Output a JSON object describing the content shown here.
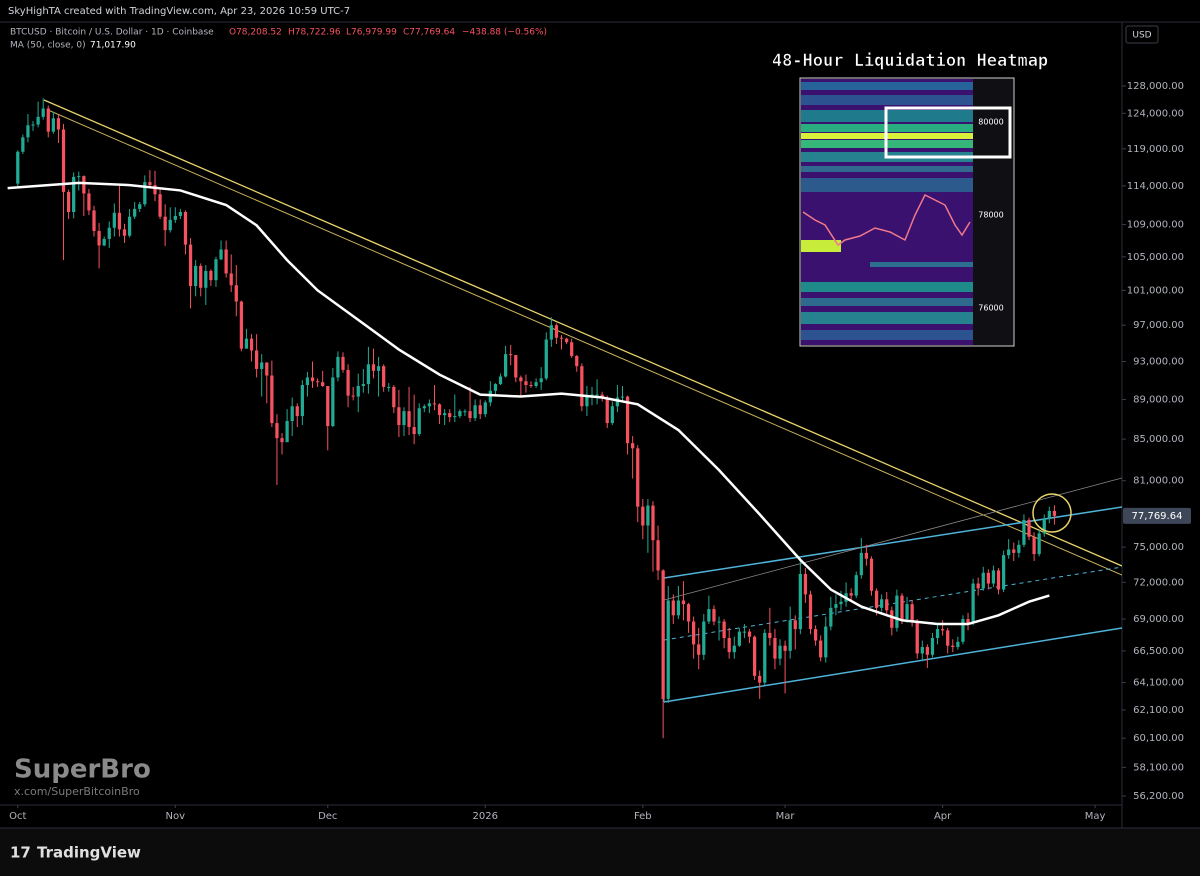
{
  "header": {
    "credit": "SkyHighTA created with TradingView.com, Apr 23, 2026 10:59 UTC-7",
    "symbol": "BTCUSD · Bitcoin / U.S. Dollar · 1D · Coinbase",
    "ohlc": [
      "O78,208.52",
      "H78,722.96",
      "L76,979.99",
      "C77,769.64",
      "−438.88 (−0.56%)"
    ],
    "ma_value": "71,017.90",
    "currency": "USD"
  },
  "inset": {
    "title": "48-Hour Liquidation Heatmap",
    "labels": [
      "80000",
      "78000",
      "76000"
    ]
  },
  "watermark": {
    "name": "SuperBro",
    "handle": "x.com/SuperBitcoinBro"
  },
  "footer": {
    "brand": "TradingView",
    "logo": "17"
  },
  "chart_data": {
    "type": "candlestick",
    "log": true,
    "up_color": "#22ab94",
    "down_color": "#f7525f",
    "ylim": [
      55620,
      137850
    ],
    "xlim": [
      -3.5,
      217.3
    ],
    "yticks": [
      {
        "value": 128000,
        "label": "128,000.00"
      },
      {
        "value": 124000,
        "label": "124,000.00"
      },
      {
        "value": 119000,
        "label": "119,000.00"
      },
      {
        "value": 114000,
        "label": "114,000.00"
      },
      {
        "value": 109000,
        "label": "109,000.00"
      },
      {
        "value": 105000,
        "label": "105,000.00"
      },
      {
        "value": 101000,
        "label": "101,000.00"
      },
      {
        "value": 97000,
        "label": "97,000.00"
      },
      {
        "value": 93000,
        "label": "93,000.00"
      },
      {
        "value": 89000,
        "label": "89,000.00"
      },
      {
        "value": 85000,
        "label": "85,000.00"
      },
      {
        "value": 81000,
        "label": "81,000.00"
      },
      {
        "value": 75000,
        "label": "75,000.00"
      },
      {
        "value": 72000,
        "label": "72,000.00"
      },
      {
        "value": 69000,
        "label": "69,000.00"
      },
      {
        "value": 66500,
        "label": "66,500.00"
      },
      {
        "value": 64100,
        "label": "64,100.00"
      },
      {
        "value": 62100,
        "label": "62,100.00"
      },
      {
        "value": 60100,
        "label": "60,100.00"
      },
      {
        "value": 58100,
        "label": "58,100.00"
      },
      {
        "value": 56200,
        "label": "56,200.00"
      }
    ],
    "xticks": [
      {
        "value": 0,
        "label": "Oct"
      },
      {
        "value": 31,
        "label": "Nov"
      },
      {
        "value": 61,
        "label": "Dec"
      },
      {
        "value": 92,
        "label": "2026"
      },
      {
        "value": 123,
        "label": "Feb"
      },
      {
        "value": 151,
        "label": "Mar"
      },
      {
        "value": 182,
        "label": "Apr"
      },
      {
        "value": 212,
        "label": "May"
      }
    ],
    "last_price_label": "77,769.64",
    "series": [
      {
        "name": "MA (50, close, 0)",
        "color": "#ffffff",
        "x": [
          -2,
          4,
          12,
          22,
          32,
          41,
          47,
          53,
          59,
          67,
          75,
          83,
          91,
          99,
          107,
          115,
          122,
          130,
          138,
          146,
          154,
          160,
          166,
          174,
          181,
          187,
          193,
          199,
          203
        ],
        "values": [
          113700,
          114000,
          114400,
          114100,
          113400,
          111500,
          108900,
          104600,
          101000,
          97600,
          94300,
          91600,
          89500,
          89300,
          89600,
          89200,
          88500,
          85900,
          82000,
          77900,
          73900,
          71400,
          70000,
          68900,
          68600,
          68600,
          69300,
          70400,
          70900
        ]
      }
    ],
    "candles": [
      [
        114300,
        118800,
        113900,
        118600
      ],
      [
        118600,
        121000,
        118300,
        120600
      ],
      [
        120600,
        123900,
        119900,
        122300
      ],
      [
        122300,
        122900,
        121500,
        122400
      ],
      [
        122400,
        125700,
        122000,
        123500
      ],
      [
        123500,
        126200,
        123100,
        124700
      ],
      [
        124700,
        125100,
        120600,
        121400
      ],
      [
        121400,
        124200,
        121100,
        123300
      ],
      [
        123300,
        123800,
        119800,
        121700
      ],
      [
        121700,
        122500,
        104600,
        113200
      ],
      [
        113200,
        113500,
        109700,
        110600
      ],
      [
        110600,
        115800,
        109800,
        115200
      ],
      [
        115200,
        115900,
        113400,
        115300
      ],
      [
        115300,
        115400,
        110100,
        113000
      ],
      [
        113000,
        113600,
        110200,
        110800
      ],
      [
        110800,
        111400,
        107500,
        108200
      ],
      [
        108200,
        109200,
        103600,
        106400
      ],
      [
        106400,
        107500,
        106300,
        107200
      ],
      [
        107200,
        109400,
        106100,
        108600
      ],
      [
        108600,
        111700,
        107500,
        110500
      ],
      [
        110500,
        114000,
        107500,
        108400
      ],
      [
        108400,
        109100,
        106700,
        107600
      ],
      [
        107600,
        111000,
        107400,
        110000
      ],
      [
        110000,
        111900,
        109700,
        111000
      ],
      [
        111000,
        111900,
        110600,
        111600
      ],
      [
        111600,
        115400,
        111300,
        114500
      ],
      [
        114500,
        116100,
        113900,
        114100
      ],
      [
        114100,
        116000,
        112000,
        112900
      ],
      [
        112900,
        113600,
        109700,
        110000
      ],
      [
        110000,
        111600,
        106300,
        108300
      ],
      [
        108300,
        111200,
        108000,
        109600
      ],
      [
        109600,
        111200,
        109200,
        110100
      ],
      [
        110100,
        111000,
        109700,
        110600
      ],
      [
        110600,
        110800,
        105300,
        106500
      ],
      [
        106500,
        107300,
        98900,
        101500
      ],
      [
        101500,
        104600,
        100300,
        103900
      ],
      [
        103900,
        104200,
        100300,
        101300
      ],
      [
        101300,
        104000,
        99300,
        103300
      ],
      [
        103300,
        103500,
        101500,
        102200
      ],
      [
        102200,
        105000,
        101400,
        104700
      ],
      [
        104700,
        107000,
        104600,
        105900
      ],
      [
        105900,
        107000,
        102500,
        103000
      ],
      [
        103000,
        105300,
        100800,
        101600
      ],
      [
        101600,
        104000,
        98000,
        99700
      ],
      [
        99700,
        99800,
        94100,
        94400
      ],
      [
        94400,
        96600,
        94400,
        95500
      ],
      [
        95500,
        96000,
        93000,
        94200
      ],
      [
        94200,
        96000,
        91300,
        92200
      ],
      [
        92200,
        93800,
        89300,
        92900
      ],
      [
        92900,
        92900,
        88600,
        91500
      ],
      [
        91500,
        93100,
        86200,
        86600
      ],
      [
        86600,
        87500,
        80600,
        85100
      ],
      [
        85100,
        85600,
        83500,
        84700
      ],
      [
        84700,
        88000,
        84700,
        86800
      ],
      [
        86800,
        89200,
        85300,
        88300
      ],
      [
        88300,
        88600,
        86200,
        87300
      ],
      [
        87300,
        91000,
        86400,
        90500
      ],
      [
        90500,
        91900,
        89300,
        91300
      ],
      [
        91300,
        93000,
        90200,
        90900
      ],
      [
        90900,
        91200,
        90300,
        90800
      ],
      [
        90800,
        92000,
        90300,
        90400
      ],
      [
        90400,
        90400,
        83900,
        86300
      ],
      [
        86300,
        92300,
        86200,
        91300
      ],
      [
        91300,
        94100,
        90900,
        93500
      ],
      [
        93500,
        94000,
        91800,
        92100
      ],
      [
        92100,
        92700,
        88200,
        89400
      ],
      [
        89400,
        90300,
        88900,
        89300
      ],
      [
        89300,
        91700,
        87700,
        90400
      ],
      [
        90400,
        92200,
        89700,
        90600
      ],
      [
        90600,
        94600,
        89600,
        92700
      ],
      [
        92700,
        94400,
        91200,
        92000
      ],
      [
        92000,
        93500,
        89300,
        92500
      ],
      [
        92500,
        92700,
        89800,
        90300
      ],
      [
        90300,
        90700,
        89800,
        90300
      ],
      [
        90300,
        90500,
        87600,
        88200
      ],
      [
        88200,
        90000,
        85200,
        86400
      ],
      [
        86400,
        88200,
        85300,
        87800
      ],
      [
        87800,
        90300,
        85400,
        86200
      ],
      [
        86200,
        89500,
        84500,
        85500
      ],
      [
        85500,
        88600,
        85300,
        88100
      ],
      [
        88100,
        88500,
        87700,
        88300
      ],
      [
        88300,
        89000,
        87600,
        88600
      ],
      [
        88600,
        90500,
        87900,
        88500
      ],
      [
        88500,
        88600,
        86500,
        87400
      ],
      [
        87400,
        88000,
        86400,
        87600
      ],
      [
        87600,
        88000,
        86700,
        87200
      ],
      [
        87200,
        89500,
        86700,
        87300
      ],
      [
        87300,
        88000,
        87100,
        87800
      ],
      [
        87800,
        88000,
        87300,
        87800
      ],
      [
        87800,
        90300,
        86700,
        87100
      ],
      [
        87100,
        89000,
        86800,
        88400
      ],
      [
        88400,
        89000,
        87000,
        87500
      ],
      [
        87500,
        88900,
        87200,
        88700
      ],
      [
        88700,
        90900,
        88300,
        89900
      ],
      [
        89900,
        90700,
        89300,
        90600
      ],
      [
        90600,
        91700,
        90500,
        91400
      ],
      [
        91400,
        94700,
        91300,
        93800
      ],
      [
        93800,
        94800,
        92600,
        93700
      ],
      [
        93700,
        93700,
        90800,
        91300
      ],
      [
        91300,
        91500,
        89400,
        90900
      ],
      [
        90900,
        91600,
        89700,
        90500
      ],
      [
        90500,
        90900,
        90200,
        90400
      ],
      [
        90400,
        91200,
        90200,
        90800
      ],
      [
        90800,
        92400,
        90000,
        91200
      ],
      [
        91200,
        96200,
        91000,
        95400
      ],
      [
        95400,
        97900,
        94600,
        97000
      ],
      [
        97000,
        97200,
        94900,
        95600
      ],
      [
        95600,
        95900,
        94300,
        95500
      ],
      [
        95500,
        95600,
        94900,
        95100
      ],
      [
        95100,
        95500,
        93400,
        93600
      ],
      [
        93600,
        93700,
        91900,
        92500
      ],
      [
        92500,
        92800,
        87800,
        88300
      ],
      [
        88300,
        90400,
        87300,
        89400
      ],
      [
        89400,
        90300,
        88400,
        89500
      ],
      [
        89500,
        91100,
        88500,
        89500
      ],
      [
        89500,
        89800,
        88800,
        89200
      ],
      [
        89200,
        89400,
        86100,
        86600
      ],
      [
        86600,
        88800,
        86400,
        88300
      ],
      [
        88300,
        90500,
        87700,
        89200
      ],
      [
        89200,
        90400,
        88700,
        89300
      ],
      [
        89300,
        89400,
        83500,
        84600
      ],
      [
        84600,
        85300,
        81200,
        84100
      ],
      [
        84100,
        84400,
        77200,
        78600
      ],
      [
        78600,
        79300,
        75700,
        76900
      ],
      [
        76900,
        79300,
        74500,
        78700
      ],
      [
        78700,
        79100,
        72900,
        75600
      ],
      [
        75600,
        76900,
        72200,
        73000
      ],
      [
        73000,
        73100,
        60100,
        62900
      ],
      [
        62900,
        71700,
        62600,
        70500
      ],
      [
        70500,
        71000,
        68600,
        69300
      ],
      [
        69300,
        71700,
        69000,
        70500
      ],
      [
        70500,
        72100,
        68900,
        70200
      ],
      [
        70200,
        70300,
        67900,
        68800
      ],
      [
        68800,
        69200,
        65900,
        67000
      ],
      [
        67000,
        68300,
        65100,
        66200
      ],
      [
        66200,
        69400,
        65800,
        68800
      ],
      [
        68800,
        70900,
        68600,
        69800
      ],
      [
        69800,
        70100,
        68500,
        68800
      ],
      [
        68800,
        69200,
        67300,
        68800
      ],
      [
        68800,
        69000,
        66700,
        67500
      ],
      [
        67500,
        68300,
        65900,
        66400
      ],
      [
        66400,
        67600,
        65900,
        66900
      ],
      [
        66900,
        68300,
        66800,
        68000
      ],
      [
        68000,
        68600,
        67500,
        68000
      ],
      [
        68000,
        68200,
        67100,
        67600
      ],
      [
        67600,
        67700,
        64300,
        64600
      ],
      [
        64600,
        65000,
        62900,
        64100
      ],
      [
        64100,
        68200,
        63900,
        67900
      ],
      [
        67900,
        69900,
        66900,
        67500
      ],
      [
        67500,
        68200,
        65100,
        65900
      ],
      [
        65900,
        67400,
        65400,
        66900
      ],
      [
        66900,
        67300,
        63300,
        66500
      ],
      [
        66500,
        70000,
        65900,
        68900
      ],
      [
        68900,
        69300,
        66600,
        68200
      ],
      [
        68200,
        74000,
        67800,
        72700
      ],
      [
        72700,
        73200,
        70300,
        71000
      ],
      [
        71000,
        71300,
        67800,
        68200
      ],
      [
        68200,
        68500,
        66900,
        67300
      ],
      [
        67300,
        67700,
        65700,
        66000
      ],
      [
        66000,
        69200,
        65600,
        68400
      ],
      [
        68400,
        70800,
        68100,
        69900
      ],
      [
        69900,
        71000,
        69300,
        70200
      ],
      [
        70200,
        71300,
        69700,
        70400
      ],
      [
        70400,
        72000,
        70000,
        71100
      ],
      [
        71100,
        71500,
        70400,
        70900
      ],
      [
        70900,
        72900,
        70700,
        72600
      ],
      [
        72600,
        75800,
        72300,
        74500
      ],
      [
        74500,
        75200,
        73400,
        74000
      ],
      [
        74000,
        74200,
        70900,
        71300
      ],
      [
        71300,
        71500,
        69300,
        69900
      ],
      [
        69900,
        71000,
        69600,
        70600
      ],
      [
        70600,
        71200,
        69400,
        69700
      ],
      [
        69700,
        70000,
        67700,
        68300
      ],
      [
        68300,
        71400,
        68000,
        70900
      ],
      [
        70900,
        71100,
        68600,
        69000
      ],
      [
        69000,
        70800,
        68700,
        70200
      ],
      [
        70200,
        70500,
        68400,
        68800
      ],
      [
        68800,
        69000,
        65900,
        66300
      ],
      [
        66300,
        67300,
        65700,
        66800
      ],
      [
        66800,
        67000,
        65200,
        66200
      ],
      [
        66200,
        67900,
        66000,
        67500
      ],
      [
        67500,
        68500,
        67000,
        68200
      ],
      [
        68200,
        68900,
        67700,
        68100
      ],
      [
        68100,
        68300,
        66300,
        66900
      ],
      [
        66900,
        67400,
        66400,
        66800
      ],
      [
        66800,
        67600,
        66600,
        67200
      ],
      [
        67200,
        69300,
        67000,
        69000
      ],
      [
        69000,
        69500,
        68100,
        68700
      ],
      [
        68700,
        72300,
        68500,
        71900
      ],
      [
        71900,
        72400,
        70900,
        71500
      ],
      [
        71500,
        73300,
        71300,
        72800
      ],
      [
        72800,
        73100,
        71400,
        71900
      ],
      [
        71900,
        73400,
        71600,
        73000
      ],
      [
        73000,
        73200,
        71000,
        71400
      ],
      [
        71400,
        74700,
        71200,
        74300
      ],
      [
        74300,
        75700,
        74000,
        74800
      ],
      [
        74800,
        75400,
        73800,
        74500
      ],
      [
        74500,
        75600,
        74100,
        75200
      ],
      [
        75200,
        77900,
        75000,
        77400
      ],
      [
        77400,
        77600,
        75600,
        75900
      ],
      [
        75900,
        76300,
        73800,
        74400
      ],
      [
        74400,
        76500,
        74200,
        76200
      ],
      [
        76200,
        77900,
        75900,
        77500
      ],
      [
        77500,
        78600,
        77100,
        78208.52
      ],
      [
        78208.52,
        78722.96,
        76979.99,
        77769.64
      ]
    ]
  }
}
